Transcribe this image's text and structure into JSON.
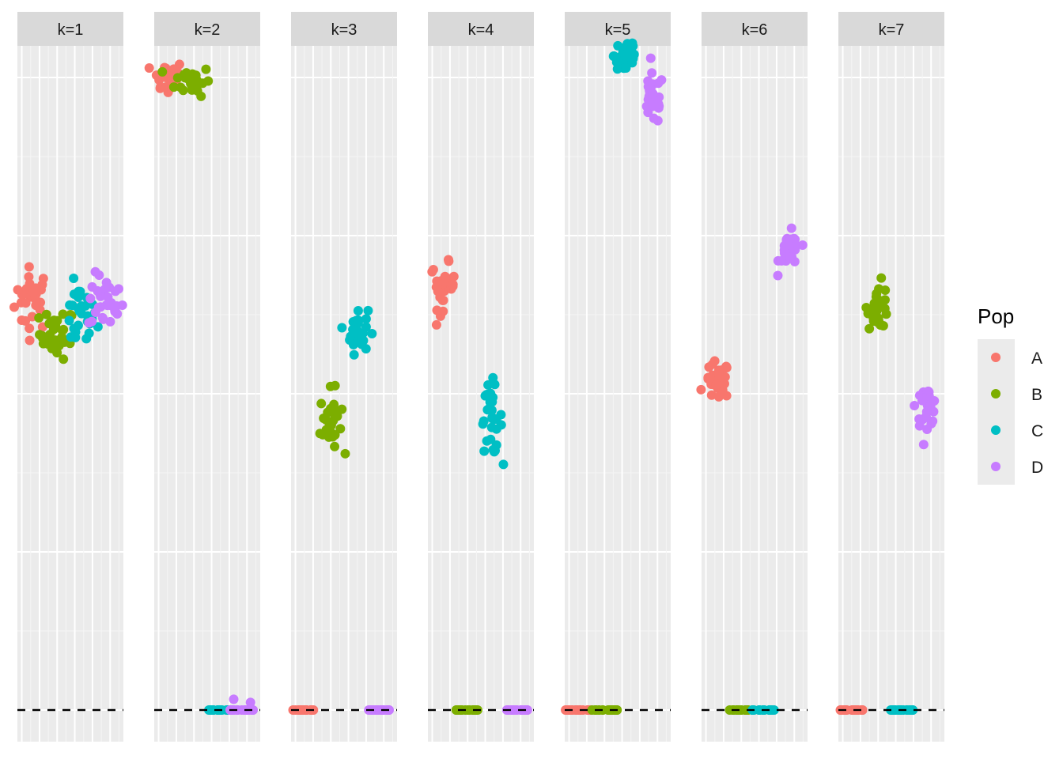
{
  "chart_data": {
    "type": "scatter",
    "facet_labels": [
      "k=1",
      "k=2",
      "k=3",
      "k=4",
      "k=5",
      "k=6",
      "k=7"
    ],
    "xlabel": "",
    "ylabel": "",
    "x_axis_tick_labels_shown": false,
    "y_axis_tick_labels_shown": false,
    "xlim": [
      0,
      12
    ],
    "ylim": [
      -0.05,
      1.05
    ],
    "reference_line": {
      "y": 0,
      "style": "dashed",
      "color": "#000000"
    },
    "legend": {
      "title": "Pop",
      "placement": "right",
      "entries": [
        {
          "label": "A",
          "color": "#F8766D"
        },
        {
          "label": "B",
          "color": "#7CAE00"
        },
        {
          "label": "C",
          "color": "#00BFC4"
        },
        {
          "label": "D",
          "color": "#C77CFF"
        }
      ]
    },
    "series": [
      {
        "name": "A",
        "color": "#F8766D"
      },
      {
        "name": "B",
        "color": "#7CAE00"
      },
      {
        "name": "C",
        "color": "#00BFC4"
      },
      {
        "name": "D",
        "color": "#C77CFF"
      }
    ],
    "clusters": [
      {
        "facet": 0,
        "pop": "A",
        "x": 1.7,
        "y": 0.65,
        "sx": 1.0,
        "sy": 0.025,
        "n": 30
      },
      {
        "facet": 0,
        "pop": "B",
        "x": 4.5,
        "y": 0.595,
        "sx": 1.0,
        "sy": 0.02,
        "n": 30
      },
      {
        "facet": 0,
        "pop": "C",
        "x": 7.0,
        "y": 0.62,
        "sx": 1.0,
        "sy": 0.025,
        "n": 30
      },
      {
        "facet": 0,
        "pop": "D",
        "x": 10.0,
        "y": 0.645,
        "sx": 1.0,
        "sy": 0.022,
        "n": 30
      },
      {
        "facet": 1,
        "pop": "A",
        "x": 1.5,
        "y": 1.0,
        "sx": 0.9,
        "sy": 0.014,
        "n": 30
      },
      {
        "facet": 1,
        "pop": "B",
        "x": 4.4,
        "y": 0.995,
        "sx": 1.0,
        "sy": 0.012,
        "n": 30
      },
      {
        "facet": 1,
        "pop": "C",
        "x": 7.2,
        "y": 0.0,
        "sx": 0.8,
        "sy": 0.0,
        "n": 20
      },
      {
        "facet": 1,
        "pop": "D",
        "x": 10.0,
        "y": 0.0,
        "sx": 0.9,
        "sy": 0.0,
        "n": 20
      },
      {
        "facet": 2,
        "pop": "B",
        "x": 4.5,
        "y": 0.455,
        "sx": 0.6,
        "sy": 0.025,
        "n": 30
      },
      {
        "facet": 2,
        "pop": "C",
        "x": 7.5,
        "y": 0.6,
        "sx": 0.6,
        "sy": 0.018,
        "n": 30
      },
      {
        "facet": 2,
        "pop": "A",
        "x": 1.5,
        "y": 0.0,
        "sx": 0.8,
        "sy": 0.0,
        "n": 20
      },
      {
        "facet": 2,
        "pop": "D",
        "x": 10.0,
        "y": 0.0,
        "sx": 0.8,
        "sy": 0.0,
        "n": 20
      },
      {
        "facet": 3,
        "pop": "A",
        "x": 1.7,
        "y": 0.67,
        "sx": 0.7,
        "sy": 0.018,
        "n": 30
      },
      {
        "facet": 3,
        "pop": "C",
        "x": 7.2,
        "y": 0.46,
        "sx": 0.6,
        "sy": 0.028,
        "n": 30
      },
      {
        "facet": 3,
        "pop": "B",
        "x": 4.4,
        "y": 0.0,
        "sx": 0.8,
        "sy": 0.0,
        "n": 20
      },
      {
        "facet": 3,
        "pop": "D",
        "x": 10.0,
        "y": 0.0,
        "sx": 0.8,
        "sy": 0.0,
        "n": 20
      },
      {
        "facet": 4,
        "pop": "C",
        "x": 7.0,
        "y": 1.035,
        "sx": 0.7,
        "sy": 0.018,
        "n": 30
      },
      {
        "facet": 4,
        "pop": "D",
        "x": 10.0,
        "y": 0.965,
        "sx": 0.6,
        "sy": 0.02,
        "n": 30
      },
      {
        "facet": 4,
        "pop": "A",
        "x": 1.5,
        "y": 0.0,
        "sx": 0.9,
        "sy": 0.0,
        "n": 20
      },
      {
        "facet": 4,
        "pop": "B",
        "x": 4.5,
        "y": 0.0,
        "sx": 0.9,
        "sy": 0.0,
        "n": 20
      }
    ],
    "extra_points": [
      {
        "facet": 1,
        "pop": "D",
        "x": 9.0,
        "y": 0.017
      },
      {
        "facet": 1,
        "pop": "D",
        "x": 10.9,
        "y": 0.012
      }
    ],
    "clusters_more": [
      {
        "facet": 5,
        "pop": "A",
        "x": 1.8,
        "y": 0.52,
        "sx": 0.7,
        "sy": 0.015,
        "n": 30
      },
      {
        "facet": 5,
        "pop": "D",
        "x": 10.0,
        "y": 0.725,
        "sx": 0.6,
        "sy": 0.015,
        "n": 30
      },
      {
        "facet": 5,
        "pop": "B",
        "x": 4.2,
        "y": 0.0,
        "sx": 0.8,
        "sy": 0.0,
        "n": 20
      },
      {
        "facet": 5,
        "pop": "C",
        "x": 7.0,
        "y": 0.0,
        "sx": 0.8,
        "sy": 0.0,
        "n": 20
      },
      {
        "facet": 6,
        "pop": "B",
        "x": 4.5,
        "y": 0.64,
        "sx": 0.6,
        "sy": 0.018,
        "n": 30
      },
      {
        "facet": 6,
        "pop": "D",
        "x": 10.0,
        "y": 0.48,
        "sx": 0.6,
        "sy": 0.015,
        "n": 30
      },
      {
        "facet": 6,
        "pop": "A",
        "x": 1.5,
        "y": 0.0,
        "sx": 0.8,
        "sy": 0.0,
        "n": 20
      },
      {
        "facet": 6,
        "pop": "C",
        "x": 7.2,
        "y": 0.0,
        "sx": 0.8,
        "sy": 0.0,
        "n": 20
      }
    ]
  }
}
